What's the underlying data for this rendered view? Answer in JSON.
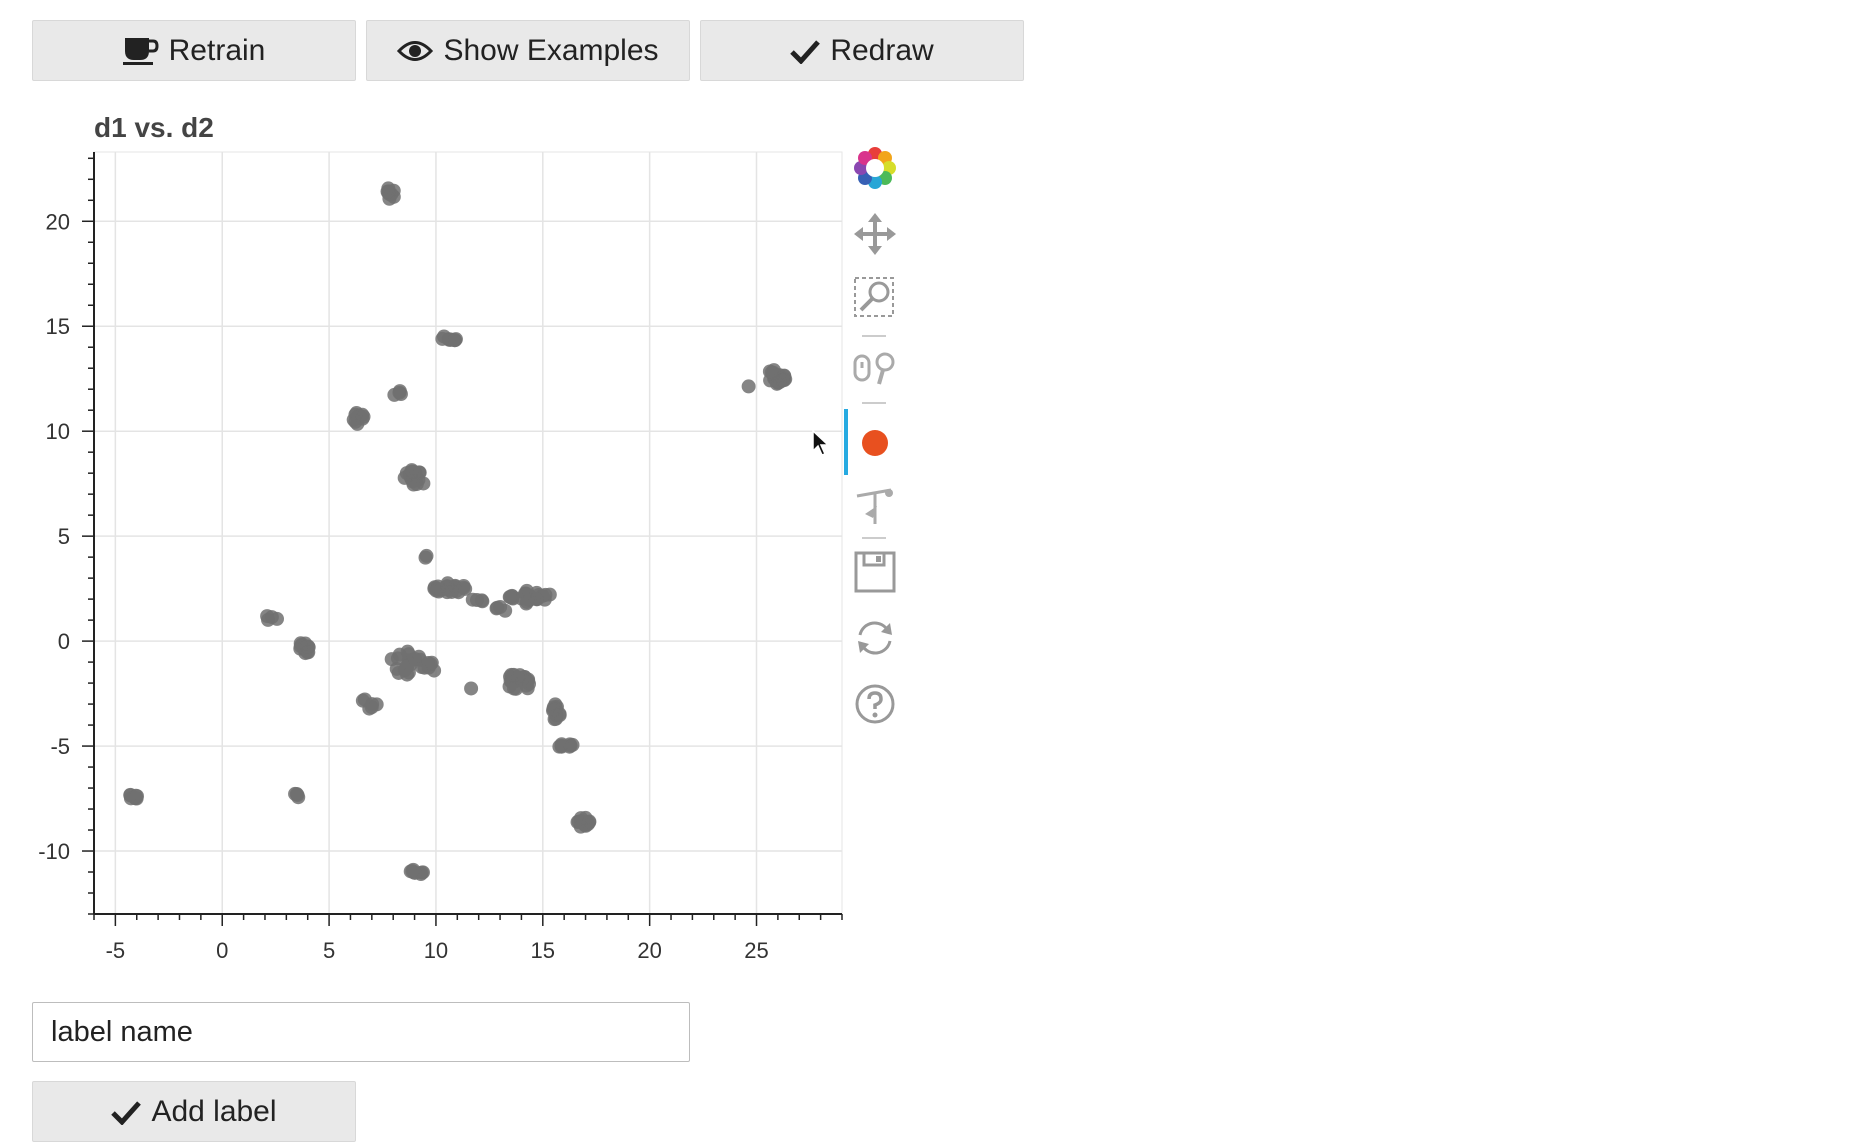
{
  "buttons": {
    "retrain": "Retrain",
    "show_examples": "Show Examples",
    "redraw": "Redraw",
    "add_label": "Add label"
  },
  "label_input": {
    "value": "label name"
  },
  "toolbar": {
    "tools": [
      "bokeh-logo-icon",
      "pan-icon",
      "box-zoom-icon",
      "wheel-zoom-icon",
      "lasso-select-icon",
      "point-draw-icon",
      "save-icon",
      "reset-icon",
      "help-icon"
    ],
    "active_tool": "lasso-select-icon",
    "accent_color": "#26aae1",
    "active_dot_color": "#e8501f"
  },
  "chart_data": {
    "type": "scatter",
    "title": "d1 vs. d2",
    "xlabel": "",
    "ylabel": "",
    "xlim": [
      -6,
      29
    ],
    "ylim": [
      -13,
      23.3
    ],
    "xticks": [
      -5,
      0,
      5,
      10,
      15,
      20,
      25
    ],
    "yticks": [
      -10,
      -5,
      0,
      5,
      10,
      15,
      20
    ],
    "grid": true,
    "point_color": "#707070",
    "clusters": [
      {
        "x": 7.8,
        "y": 21.3,
        "sx": 0.3,
        "sy": 0.3,
        "n": 10
      },
      {
        "x": 10.5,
        "y": 14.4,
        "sx": 0.45,
        "sy": 0.15,
        "n": 9
      },
      {
        "x": 6.4,
        "y": 10.6,
        "sx": 0.3,
        "sy": 0.35,
        "n": 10
      },
      {
        "x": 8.2,
        "y": 11.8,
        "sx": 0.3,
        "sy": 0.15,
        "n": 4
      },
      {
        "x": 9.0,
        "y": 7.8,
        "sx": 0.55,
        "sy": 0.45,
        "n": 16
      },
      {
        "x": 25.9,
        "y": 12.6,
        "sx": 0.6,
        "sy": 0.35,
        "n": 22
      },
      {
        "x": 24.7,
        "y": 12.2,
        "sx": 0.1,
        "sy": 0.1,
        "n": 1
      },
      {
        "x": 9.5,
        "y": 4.1,
        "sx": 0.15,
        "sy": 0.15,
        "n": 2
      },
      {
        "x": 10.6,
        "y": 2.5,
        "sx": 0.8,
        "sy": 0.3,
        "n": 22
      },
      {
        "x": 12.0,
        "y": 2.0,
        "sx": 0.3,
        "sy": 0.15,
        "n": 4
      },
      {
        "x": 14.4,
        "y": 2.1,
        "sx": 1.0,
        "sy": 0.35,
        "n": 24
      },
      {
        "x": 13.0,
        "y": 1.4,
        "sx": 0.25,
        "sy": 0.25,
        "n": 4
      },
      {
        "x": 2.3,
        "y": 1.1,
        "sx": 0.35,
        "sy": 0.2,
        "n": 4
      },
      {
        "x": 3.9,
        "y": -0.3,
        "sx": 0.3,
        "sy": 0.4,
        "n": 14
      },
      {
        "x": 8.6,
        "y": -1.0,
        "sx": 0.8,
        "sy": 0.6,
        "n": 18
      },
      {
        "x": 6.9,
        "y": -2.9,
        "sx": 0.4,
        "sy": 0.35,
        "n": 6
      },
      {
        "x": 9.7,
        "y": -1.2,
        "sx": 0.3,
        "sy": 0.3,
        "n": 6
      },
      {
        "x": 11.7,
        "y": -2.2,
        "sx": 0.1,
        "sy": 0.1,
        "n": 1
      },
      {
        "x": 13.8,
        "y": -2.0,
        "sx": 0.6,
        "sy": 0.55,
        "n": 20
      },
      {
        "x": 15.6,
        "y": -3.5,
        "sx": 0.25,
        "sy": 0.5,
        "n": 12
      },
      {
        "x": 16.0,
        "y": -4.9,
        "sx": 0.45,
        "sy": 0.2,
        "n": 8
      },
      {
        "x": -4.2,
        "y": -7.4,
        "sx": 0.35,
        "sy": 0.15,
        "n": 8
      },
      {
        "x": 3.4,
        "y": -7.4,
        "sx": 0.2,
        "sy": 0.2,
        "n": 4
      },
      {
        "x": 16.9,
        "y": -8.8,
        "sx": 0.35,
        "sy": 0.4,
        "n": 12
      },
      {
        "x": 9.1,
        "y": -11.0,
        "sx": 0.35,
        "sy": 0.12,
        "n": 8
      }
    ]
  }
}
